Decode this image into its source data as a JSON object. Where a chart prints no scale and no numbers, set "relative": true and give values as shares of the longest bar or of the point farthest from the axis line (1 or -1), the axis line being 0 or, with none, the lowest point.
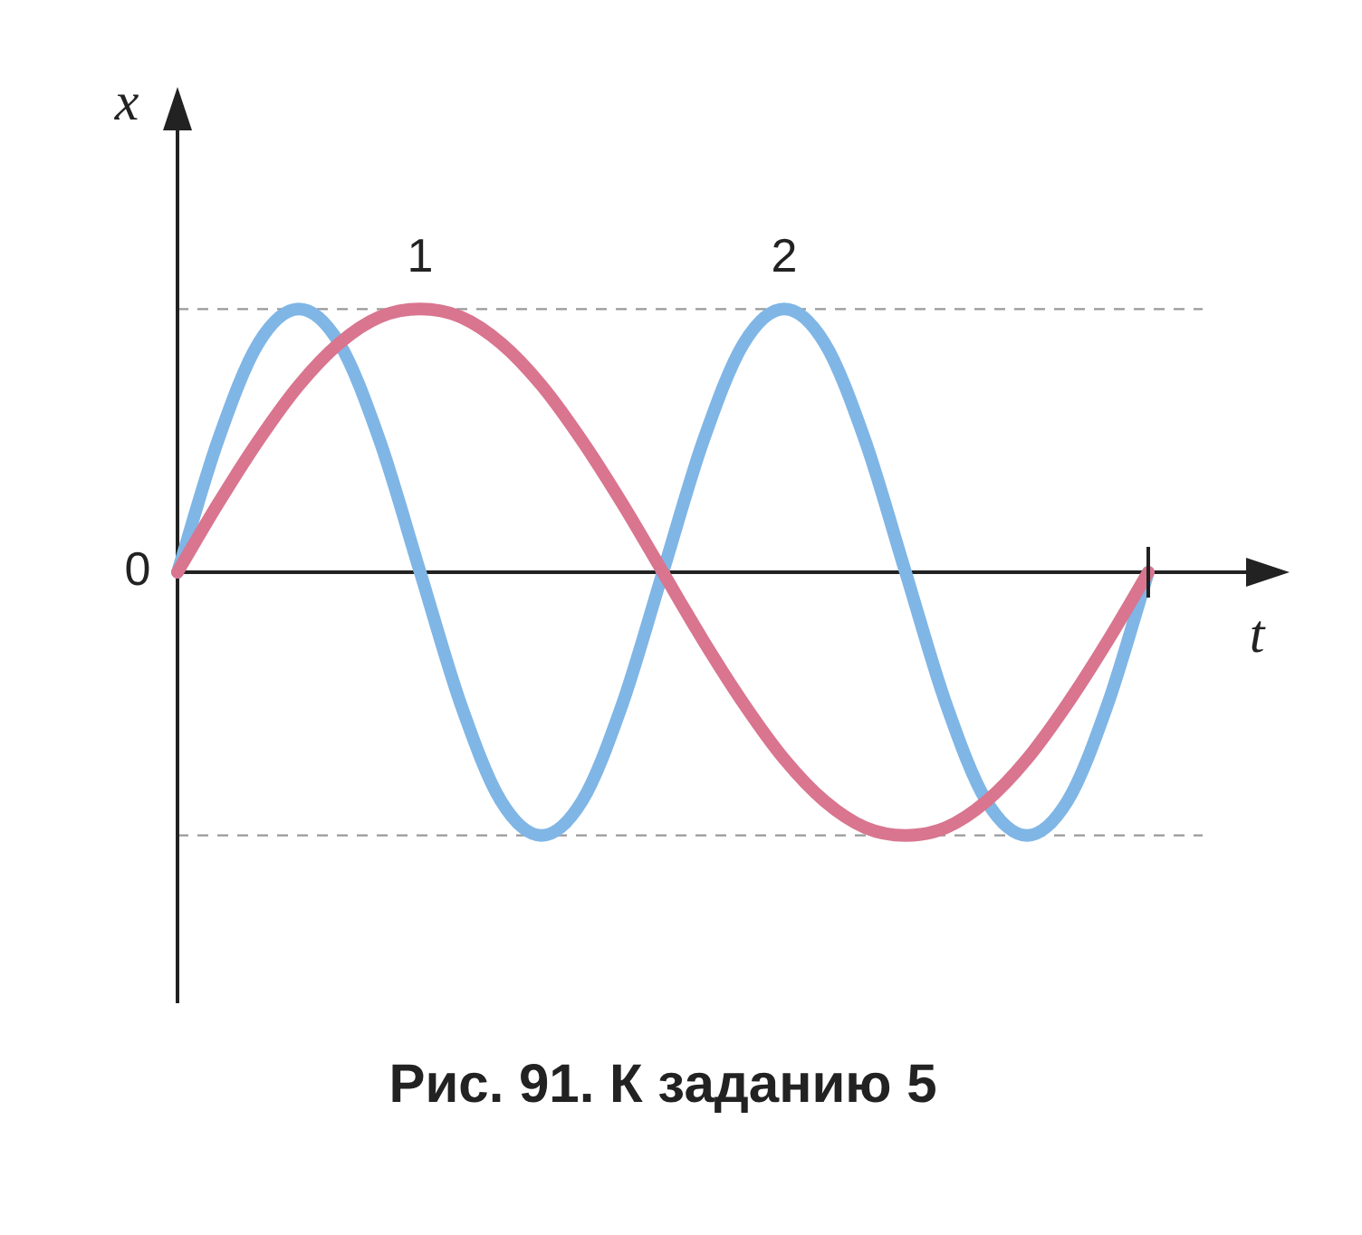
{
  "chart_data": {
    "type": "line",
    "relative": true,
    "title": "Рис. 91. К заданию 5",
    "xlabel": "t",
    "ylabel": "x",
    "annotations": [
      "0"
    ],
    "legend": false,
    "grid": false,
    "categories": [
      null,
      null,
      null,
      null,
      null,
      null,
      null,
      null,
      null,
      null,
      null,
      null,
      null,
      null,
      null,
      null,
      null,
      null,
      null,
      null,
      null,
      null,
      null,
      null,
      null
    ],
    "series": [
      {
        "name": "1",
        "color": "#d9758f",
        "values": [
          0,
          0.26,
          0.5,
          0.71,
          0.87,
          0.97,
          1,
          0.97,
          0.87,
          0.71,
          0.5,
          0.26,
          0,
          -0.26,
          -0.5,
          -0.71,
          -0.87,
          -0.97,
          -1,
          -0.97,
          -0.87,
          -0.71,
          -0.5,
          -0.26,
          0
        ]
      },
      {
        "name": "2",
        "color": "#7fb6e6",
        "values": [
          0,
          0.5,
          0.87,
          1,
          0.87,
          0.5,
          0,
          -0.5,
          -0.87,
          -1,
          -0.87,
          -0.5,
          0,
          0.5,
          0.87,
          1,
          0.87,
          0.5,
          0,
          -0.5,
          -0.87,
          -1,
          -0.87,
          -0.5,
          0
        ]
      }
    ],
    "ref_lines": [
      {
        "axis": "y",
        "value": 1,
        "color": "#999999",
        "line_style": "dashed"
      },
      {
        "axis": "y",
        "value": -1,
        "color": "#999999",
        "line_style": "dashed"
      }
    ]
  }
}
